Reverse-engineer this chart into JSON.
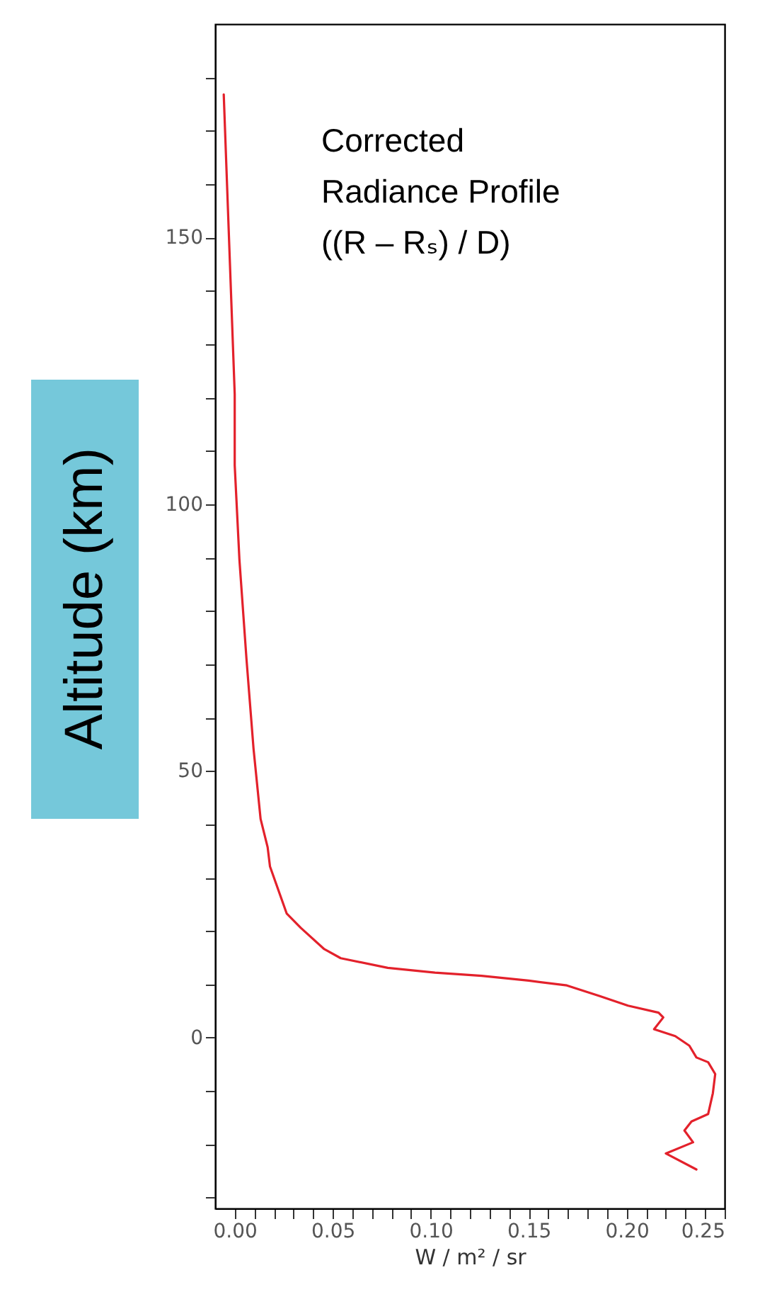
{
  "chart_data": {
    "type": "line",
    "xlabel": "W / m² / sr",
    "ylabel": "Altitude (km)",
    "annotations": [
      "Corrected\nRadiance Profile\n((R – Rₛ) / D)"
    ],
    "series": [
      {
        "color": "#e3212b",
        "x": [
          -0.0056,
          0.0,
          0.0,
          0.0024,
          0.006,
          0.0096,
          0.0132,
          0.0168,
          0.018,
          0.0265,
          0.0337,
          0.0457,
          0.0541,
          0.0781,
          0.1022,
          0.126,
          0.15,
          0.1695,
          0.1863,
          0.2007,
          0.2163,
          0.2187,
          0.214,
          0.2248,
          0.232,
          0.2356,
          0.2416,
          0.2452,
          0.244,
          0.2416,
          0.2331,
          0.2295,
          0.2339,
          0.22,
          0.2356
        ],
        "values": [
          176.8,
          120.6,
          107.3,
          89.6,
          71,
          54.2,
          41,
          35.7,
          32.1,
          23.3,
          20.6,
          16.6,
          14.9,
          13.1,
          12.2,
          11.6,
          10.7,
          9.8,
          7.8,
          6.0,
          4.7,
          3.8,
          1.6,
          0.3,
          -1.5,
          -3.7,
          -4.6,
          -6.8,
          -10.4,
          -14.3,
          -15.7,
          -17.4,
          -19.6,
          -21.7,
          -24.7
        ]
      }
    ],
    "xlim": [
      -0.01,
      0.25
    ],
    "xticks": [
      {
        "value": 0,
        "label": "0.00"
      },
      {
        "value": 0.01,
        "label": null
      },
      {
        "value": 0.02,
        "label": null
      },
      {
        "value": 0.03,
        "label": null
      },
      {
        "value": 0.04,
        "label": null
      },
      0.05,
      {
        "value": 0.06,
        "label": null
      },
      {
        "value": 0.07,
        "label": null
      },
      {
        "value": 0.08,
        "label": null
      },
      {
        "value": 0.09,
        "label": null
      },
      {
        "value": 0.1,
        "label": "0.10"
      },
      {
        "value": 0.11,
        "label": null
      },
      {
        "value": 0.12,
        "label": null
      },
      {
        "value": 0.13,
        "label": null
      },
      {
        "value": 0.14,
        "label": null
      },
      0.15,
      {
        "value": 0.16,
        "label": null
      },
      {
        "value": 0.17,
        "label": null
      },
      {
        "value": 0.18,
        "label": null
      },
      {
        "value": 0.19,
        "label": null
      },
      {
        "value": 0.2,
        "label": "0.20"
      },
      {
        "value": 0.21,
        "label": null
      },
      {
        "value": 0.22,
        "label": null
      },
      {
        "value": 0.23,
        "label": null
      },
      {
        "value": 0.24,
        "label": null
      },
      0.25
    ],
    "ylim": [
      -32,
      190
    ],
    "yticks": [
      {
        "value": -30,
        "label": null
      },
      {
        "value": -20,
        "label": null
      },
      {
        "value": -10,
        "label": null
      },
      0,
      {
        "value": 10,
        "label": null
      },
      {
        "value": 20,
        "label": null
      },
      {
        "value": 30,
        "label": null
      },
      {
        "value": 40,
        "label": null
      },
      50,
      {
        "value": 60,
        "label": null
      },
      {
        "value": 70,
        "label": null
      },
      {
        "value": 80,
        "label": null
      },
      {
        "value": 90,
        "label": null
      },
      100,
      {
        "value": 110,
        "label": null
      },
      {
        "value": 120,
        "label": null
      },
      {
        "value": 130,
        "label": null
      },
      {
        "value": 140,
        "label": null
      },
      150,
      {
        "value": 160,
        "label": null
      },
      {
        "value": 170,
        "label": null
      },
      {
        "value": 180,
        "label": null
      }
    ],
    "marker": "none",
    "line_style": "solid"
  }
}
